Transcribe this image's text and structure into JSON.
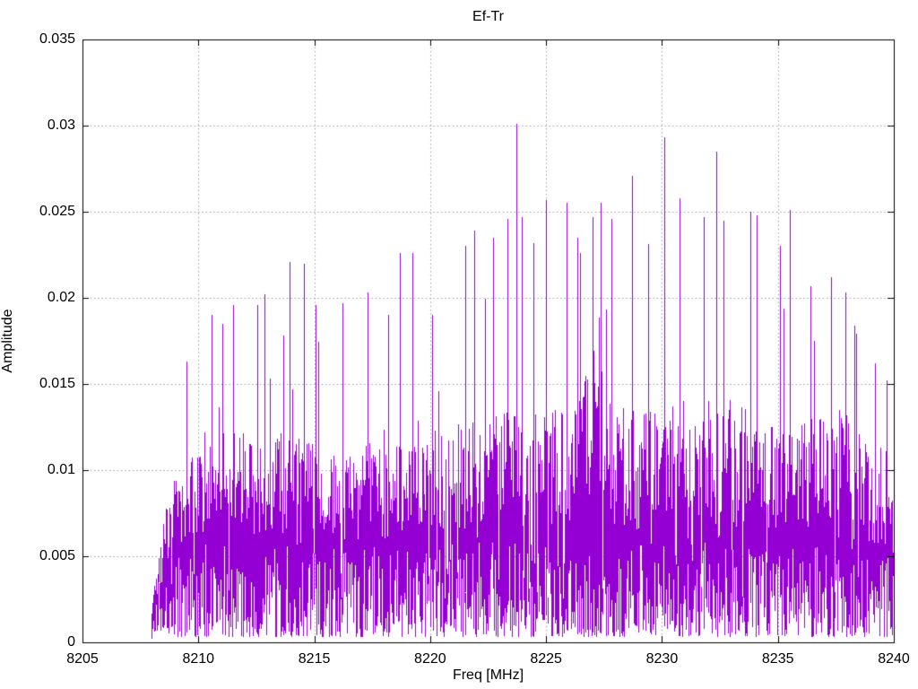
{
  "chart_data": {
    "type": "line",
    "title": "Ef-Tr",
    "xlabel": "Freq [MHz]",
    "ylabel": "Amplitude",
    "xlim": [
      8205,
      8240
    ],
    "ylim": [
      0,
      0.035
    ],
    "grid": true,
    "legend_position": "none",
    "x_ticks": [
      8205,
      8210,
      8215,
      8220,
      8225,
      8230,
      8235,
      8240
    ],
    "x_tick_labels": [
      "8205",
      "8210",
      "8215",
      "8220",
      "8225",
      "8230",
      "8235",
      "8240"
    ],
    "y_ticks": [
      0,
      0.005,
      0.01,
      0.015,
      0.02,
      0.025,
      0.03,
      0.035
    ],
    "y_tick_labels": [
      "0",
      "0.005",
      "0.01",
      "0.015",
      "0.02",
      "0.025",
      "0.03",
      "0.035"
    ],
    "colors": {
      "line": "#9400d3",
      "grid": "#a0a0a0",
      "border": "#000000",
      "background": "#ffffff",
      "text": "#000000"
    },
    "series": [
      {
        "name": "Ef-Tr",
        "signal_start_mhz": 8207.95,
        "signal_end_mhz": 8240,
        "noise_seed": 1337,
        "envelope_freq": [
          8207.95,
          8208.2,
          8208.5,
          8209,
          8209.5,
          8210,
          8210.5,
          8211,
          8211.5,
          8212,
          8212.5,
          8213,
          8213.5,
          8214,
          8214.5,
          8215,
          8215.5,
          8216,
          8216.5,
          8217,
          8217.5,
          8218,
          8218.5,
          8219,
          8219.5,
          8220,
          8220.5,
          8221,
          8221.5,
          8222,
          8222.5,
          8223,
          8223.5,
          8224,
          8224.5,
          8225,
          8225.5,
          8226,
          8226.5,
          8227,
          8227.5,
          8228,
          8228.5,
          8229,
          8229.5,
          8230,
          8230.5,
          8231,
          8231.5,
          8232,
          8232.5,
          8233,
          8233.5,
          8234,
          8234.5,
          8235,
          8235.5,
          8236,
          8236.5,
          8237,
          8237.5,
          8238,
          8238.5,
          8239,
          8239.5,
          8240
        ],
        "envelope_dense_top": [
          0.002,
          0.004,
          0.006,
          0.0085,
          0.009,
          0.0095,
          0.0095,
          0.01,
          0.01,
          0.0095,
          0.0095,
          0.0095,
          0.01,
          0.01,
          0.01,
          0.0095,
          0.009,
          0.009,
          0.0092,
          0.0095,
          0.0095,
          0.009,
          0.0095,
          0.0098,
          0.0098,
          0.0102,
          0.0105,
          0.0105,
          0.0105,
          0.0105,
          0.0108,
          0.011,
          0.011,
          0.0108,
          0.0108,
          0.011,
          0.0112,
          0.0115,
          0.0135,
          0.014,
          0.013,
          0.0115,
          0.0112,
          0.011,
          0.011,
          0.0112,
          0.0112,
          0.011,
          0.0112,
          0.0115,
          0.0115,
          0.0112,
          0.011,
          0.0108,
          0.0105,
          0.0102,
          0.0102,
          0.0105,
          0.0108,
          0.0112,
          0.0112,
          0.0108,
          0.01,
          0.0092,
          0.0085,
          0.0075
        ],
        "envelope_peak": [
          0.003,
          0.008,
          0.0123,
          0.0145,
          0.0163,
          0.0165,
          0.019,
          0.0187,
          0.02,
          0.0182,
          0.0196,
          0.02,
          0.0215,
          0.0221,
          0.022,
          0.0196,
          0.0182,
          0.016,
          0.019,
          0.0203,
          0.0195,
          0.0178,
          0.021,
          0.0226,
          0.02,
          0.019,
          0.0188,
          0.0195,
          0.023,
          0.0205,
          0.0235,
          0.0215,
          0.026,
          0.0246,
          0.021,
          0.0257,
          0.022,
          0.0255,
          0.023,
          0.025,
          0.025,
          0.0215,
          0.026,
          0.0228,
          0.0232,
          0.0285,
          0.0258,
          0.022,
          0.0235,
          0.027,
          0.0262,
          0.0225,
          0.0245,
          0.0248,
          0.022,
          0.023,
          0.025,
          0.0195,
          0.021,
          0.0215,
          0.0212,
          0.02,
          0.0175,
          0.0158,
          0.0155,
          0.013
        ],
        "notable_peaks": [
          [
            8209.5,
            0.0163
          ],
          [
            8210.55,
            0.019
          ],
          [
            8211.05,
            0.0185
          ],
          [
            8211.5,
            0.0196
          ],
          [
            8212.55,
            0.0196
          ],
          [
            8212.85,
            0.0202
          ],
          [
            8213.95,
            0.0221
          ],
          [
            8214.55,
            0.022
          ],
          [
            8215.05,
            0.0196
          ],
          [
            8216.2,
            0.0197
          ],
          [
            8217.3,
            0.0203
          ],
          [
            8218.2,
            0.019
          ],
          [
            8218.7,
            0.0226
          ],
          [
            8219.25,
            0.0226
          ],
          [
            8220.1,
            0.019
          ],
          [
            8221.5,
            0.023
          ],
          [
            8221.9,
            0.0239
          ],
          [
            8222.7,
            0.0235
          ],
          [
            8223.35,
            0.0246
          ],
          [
            8223.7,
            0.0301
          ],
          [
            8223.95,
            0.0247
          ],
          [
            8224.45,
            0.0232
          ],
          [
            8225.0,
            0.0257
          ],
          [
            8225.9,
            0.0255
          ],
          [
            8226.35,
            0.0235
          ],
          [
            8227.0,
            0.0247
          ],
          [
            8227.35,
            0.0255
          ],
          [
            8227.8,
            0.0246
          ],
          [
            8228.7,
            0.0271
          ],
          [
            8229.4,
            0.0231
          ],
          [
            8230.1,
            0.0293
          ],
          [
            8230.75,
            0.0258
          ],
          [
            8231.8,
            0.0247
          ],
          [
            8232.35,
            0.0285
          ],
          [
            8232.65,
            0.0245
          ],
          [
            8233.8,
            0.025
          ],
          [
            8234.1,
            0.0248
          ],
          [
            8235.1,
            0.023
          ],
          [
            8235.5,
            0.0251
          ],
          [
            8236.4,
            0.0207
          ],
          [
            8237.3,
            0.0212
          ],
          [
            8237.9,
            0.0203
          ],
          [
            8238.3,
            0.0184
          ],
          [
            8239.2,
            0.0162
          ],
          [
            8239.7,
            0.0152
          ]
        ]
      }
    ]
  }
}
